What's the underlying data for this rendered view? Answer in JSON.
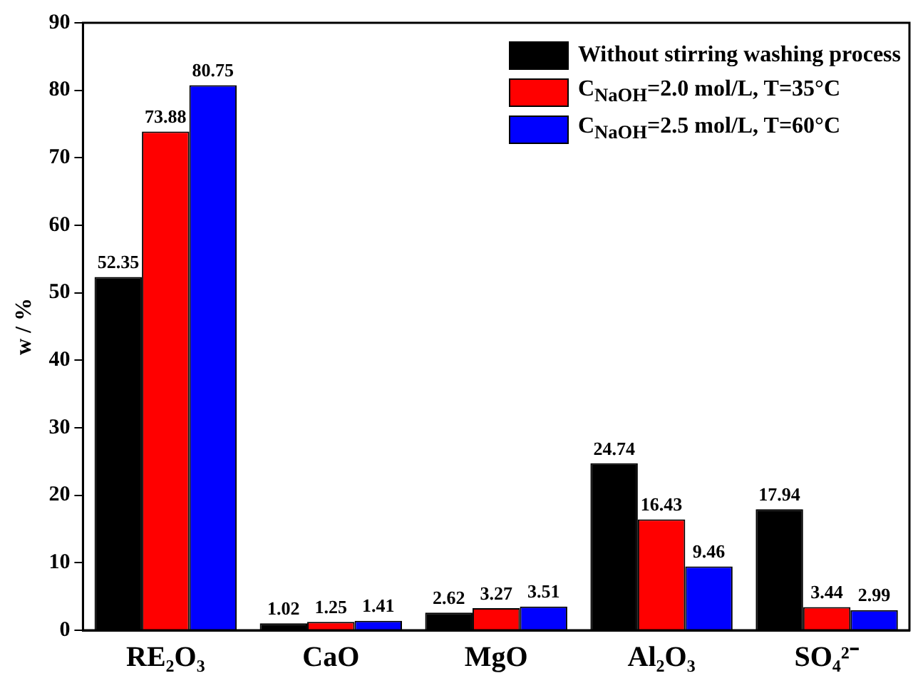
{
  "chart_data": {
    "type": "bar",
    "ylabel": "w / %",
    "categories": [
      "RE₂O₃",
      "CaO",
      "MgO",
      "Al₂O₃",
      "SO₄²⁻"
    ],
    "series": [
      {
        "name": "Without stirring washing process",
        "color": "#000000",
        "values": [
          52.35,
          1.02,
          2.62,
          24.74,
          17.94
        ]
      },
      {
        "name": "C$_{NaOH}$=2.0 mol/L, T=35°C",
        "color": "#ff0000",
        "values": [
          73.88,
          1.25,
          3.27,
          16.43,
          3.44
        ]
      },
      {
        "name": "C$_{NaOH}$=2.5 mol/L, T=60°C",
        "color": "#0000ff",
        "values": [
          80.75,
          1.41,
          3.51,
          9.46,
          2.99
        ]
      }
    ],
    "ylim": [
      0,
      90
    ],
    "yticks": [
      0,
      10,
      20,
      30,
      40,
      50,
      60,
      70,
      80,
      90
    ],
    "grid": false,
    "legend": "top right",
    "data_labels": true
  }
}
